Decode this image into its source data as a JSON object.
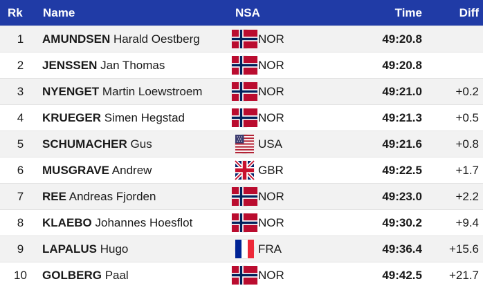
{
  "header": {
    "rank": "Rk",
    "name": "Name",
    "nsa": "NSA",
    "time": "Time",
    "diff": "Diff"
  },
  "colors": {
    "header_bg": "#203ba6",
    "row_odd": "#f2f2f2",
    "row_even": "#ffffff"
  },
  "rows": [
    {
      "rank": "1",
      "surname": "AMUNDSEN",
      "given": "Harald Oestberg",
      "nsa": "NOR",
      "flag": "norway-flag-icon",
      "time": "49:20.8",
      "diff": ""
    },
    {
      "rank": "2",
      "surname": "JENSSEN",
      "given": "Jan Thomas",
      "nsa": "NOR",
      "flag": "norway-flag-icon",
      "time": "49:20.8",
      "diff": ""
    },
    {
      "rank": "3",
      "surname": "NYENGET",
      "given": "Martin Loewstroem",
      "nsa": "NOR",
      "flag": "norway-flag-icon",
      "time": "49:21.0",
      "diff": "+0.2"
    },
    {
      "rank": "4",
      "surname": "KRUEGER",
      "given": "Simen Hegstad",
      "nsa": "NOR",
      "flag": "norway-flag-icon",
      "time": "49:21.3",
      "diff": "+0.5"
    },
    {
      "rank": "5",
      "surname": "SCHUMACHER",
      "given": "Gus",
      "nsa": "USA",
      "flag": "usa-flag-icon",
      "time": "49:21.6",
      "diff": "+0.8"
    },
    {
      "rank": "6",
      "surname": "MUSGRAVE",
      "given": "Andrew",
      "nsa": "GBR",
      "flag": "uk-flag-icon",
      "time": "49:22.5",
      "diff": "+1.7"
    },
    {
      "rank": "7",
      "surname": "REE",
      "given": "Andreas Fjorden",
      "nsa": "NOR",
      "flag": "norway-flag-icon",
      "time": "49:23.0",
      "diff": "+2.2"
    },
    {
      "rank": "8",
      "surname": "KLAEBO",
      "given": "Johannes Hoesflot",
      "nsa": "NOR",
      "flag": "norway-flag-icon",
      "time": "49:30.2",
      "diff": "+9.4"
    },
    {
      "rank": "9",
      "surname": "LAPALUS",
      "given": "Hugo",
      "nsa": "FRA",
      "flag": "france-flag-icon",
      "time": "49:36.4",
      "diff": "+15.6"
    },
    {
      "rank": "10",
      "surname": "GOLBERG",
      "given": "Paal",
      "nsa": "NOR",
      "flag": "norway-flag-icon",
      "time": "49:42.5",
      "diff": "+21.7"
    }
  ]
}
